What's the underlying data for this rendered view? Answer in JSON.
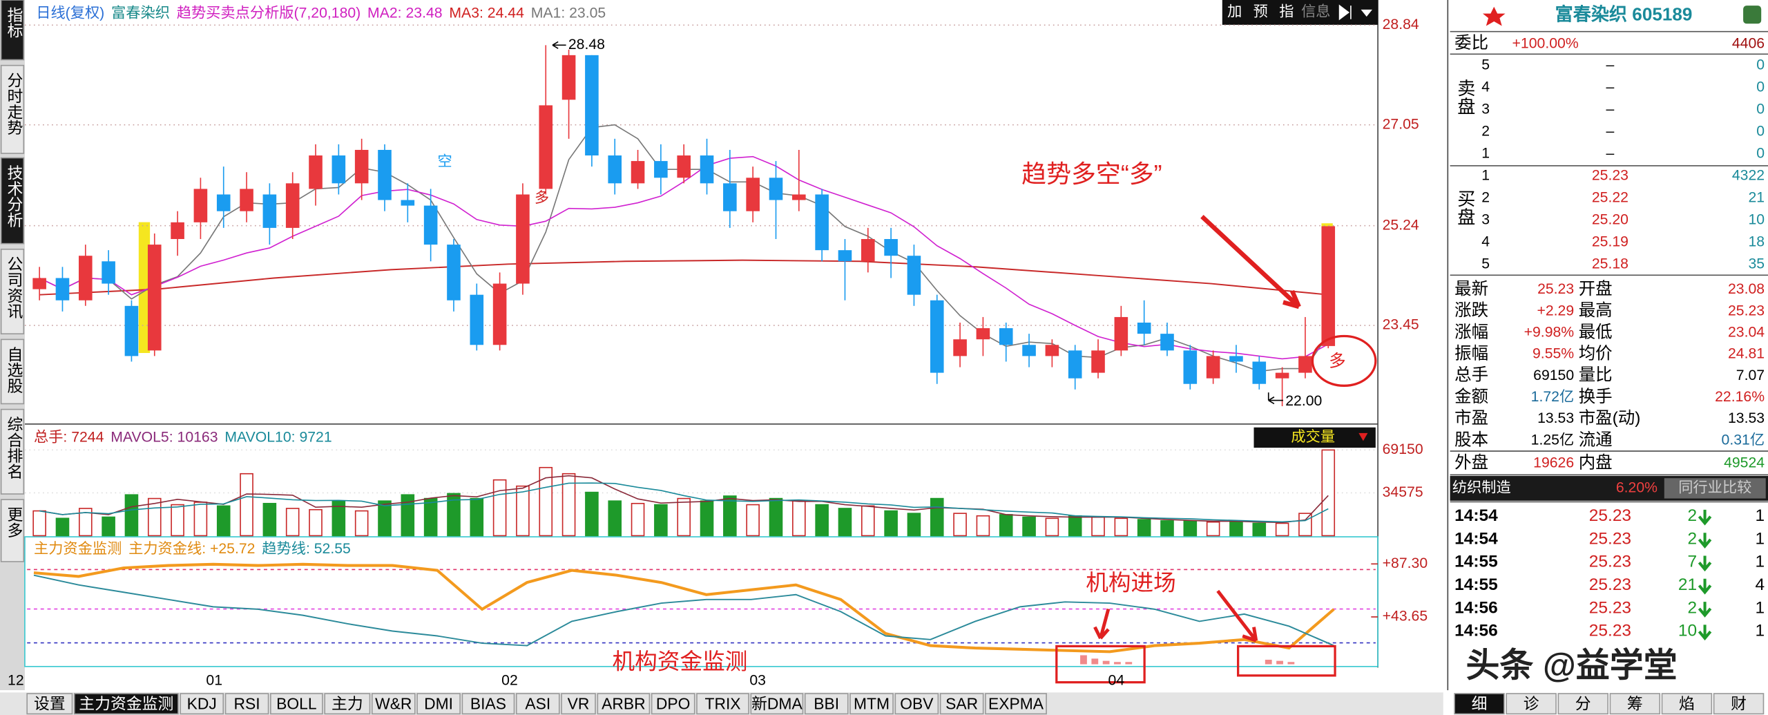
{
  "sidebar": [
    "指标",
    "分时走势",
    "技术分析",
    "公司资讯",
    "自选股",
    "综合排名",
    "更多"
  ],
  "toolbar": [
    "加",
    "预",
    "指",
    "信息"
  ],
  "header": {
    "period": "日线(复权)",
    "name": "富春染织",
    "indicator": "趋势买卖点分析版(7,20,180)",
    "ma2": "MA2: 23.48",
    "ma3": "MA3: 24.44",
    "ma1": "MA1: 23.05"
  },
  "price_chart": {
    "type": "candlestick",
    "ylim": [
      21.7,
      29.29
    ],
    "yticks": [
      28.84,
      27.05,
      25.24,
      23.45
    ],
    "candles": [
      [
        24.1,
        24.3,
        24.5,
        23.9
      ],
      [
        24.3,
        23.9,
        24.5,
        23.7
      ],
      [
        23.9,
        24.7,
        24.9,
        23.8
      ],
      [
        24.6,
        24.2,
        24.8,
        24.0
      ],
      [
        23.8,
        22.9,
        23.9,
        22.8
      ],
      [
        23.0,
        24.9,
        25.1,
        22.9
      ],
      [
        25.0,
        25.3,
        25.5,
        24.7
      ],
      [
        25.3,
        25.9,
        26.1,
        25.0
      ],
      [
        25.8,
        25.5,
        26.3,
        25.2
      ],
      [
        25.5,
        25.9,
        26.2,
        25.3
      ],
      [
        25.8,
        25.2,
        26.0,
        24.9
      ],
      [
        25.2,
        26.0,
        26.2,
        25.0
      ],
      [
        25.9,
        26.5,
        26.7,
        25.6
      ],
      [
        26.5,
        26.0,
        26.7,
        25.8
      ],
      [
        26.0,
        26.6,
        26.8,
        25.7
      ],
      [
        26.6,
        25.7,
        26.7,
        25.5
      ],
      [
        25.7,
        25.6,
        26.0,
        25.3
      ],
      [
        25.6,
        24.9,
        25.9,
        24.6
      ],
      [
        24.9,
        23.9,
        25.0,
        23.7
      ],
      [
        24.0,
        23.1,
        24.2,
        23.0
      ],
      [
        23.1,
        24.2,
        24.4,
        23.0
      ],
      [
        24.2,
        25.8,
        26.0,
        24.0
      ],
      [
        25.9,
        27.4,
        28.48,
        25.8
      ],
      [
        27.5,
        28.3,
        28.4,
        26.8
      ],
      [
        28.3,
        26.5,
        28.3,
        26.3
      ],
      [
        26.5,
        26.0,
        26.8,
        25.8
      ],
      [
        26.0,
        26.4,
        26.6,
        25.9
      ],
      [
        26.4,
        26.1,
        26.7,
        25.8
      ],
      [
        26.1,
        26.5,
        26.7,
        26.0
      ],
      [
        26.5,
        26.0,
        26.8,
        25.8
      ],
      [
        26.0,
        25.5,
        26.6,
        25.2
      ],
      [
        25.5,
        26.1,
        26.3,
        25.3
      ],
      [
        26.1,
        25.7,
        26.4,
        25.0
      ],
      [
        25.7,
        25.8,
        26.6,
        25.5
      ],
      [
        25.8,
        24.8,
        25.9,
        24.6
      ],
      [
        24.8,
        24.6,
        25.0,
        23.9
      ],
      [
        24.6,
        25.0,
        25.2,
        24.4
      ],
      [
        25.0,
        24.7,
        25.2,
        24.3
      ],
      [
        24.7,
        24.0,
        24.9,
        23.8
      ],
      [
        23.9,
        22.6,
        24.0,
        22.4
      ],
      [
        22.9,
        23.2,
        23.5,
        22.7
      ],
      [
        23.2,
        23.4,
        23.6,
        22.9
      ],
      [
        23.4,
        23.1,
        23.5,
        22.8
      ],
      [
        23.1,
        22.9,
        23.3,
        22.7
      ],
      [
        22.9,
        23.1,
        23.2,
        22.7
      ],
      [
        23.0,
        22.5,
        23.1,
        22.3
      ],
      [
        22.6,
        23.0,
        23.2,
        22.5
      ],
      [
        23.0,
        23.6,
        23.8,
        22.9
      ],
      [
        23.5,
        23.3,
        23.9,
        23.1
      ],
      [
        23.3,
        23.0,
        23.5,
        22.9
      ],
      [
        23.0,
        22.4,
        23.1,
        22.3
      ],
      [
        22.5,
        22.9,
        23.0,
        22.4
      ],
      [
        22.9,
        22.8,
        23.1,
        22.6
      ],
      [
        22.8,
        22.4,
        22.9,
        22.3
      ],
      [
        22.5,
        22.6,
        22.7,
        22.0
      ],
      [
        22.6,
        22.9,
        23.6,
        22.5
      ],
      [
        23.08,
        25.23,
        25.23,
        23.04
      ]
    ],
    "ma_long": [
      24.0,
      24.1,
      24.3,
      24.45,
      24.55,
      24.6,
      24.62,
      24.6,
      24.5,
      24.35,
      24.2,
      24.0
    ],
    "max_label": "28.48",
    "min_label": "22.00",
    "label_short": "空",
    "label_long": "多",
    "annotation": "趋势多空“多”",
    "circle_label": "多"
  },
  "volume_chart": {
    "type": "bar",
    "total": "总手: 7244",
    "mavol5": "MAVOL5: 10163",
    "mavol10": "MAVOL10: 9721",
    "button": "成交量",
    "ylim": [
      0,
      89170
    ],
    "yticks": [
      69150,
      34575
    ],
    "values": [
      20000,
      14000,
      22000,
      15000,
      33000,
      30000,
      25000,
      27000,
      24000,
      50000,
      26000,
      22000,
      21000,
      28000,
      20000,
      28000,
      33000,
      30000,
      34000,
      30000,
      45000,
      40000,
      55000,
      50000,
      35000,
      28000,
      26000,
      25000,
      30000,
      28000,
      32000,
      25000,
      30000,
      28000,
      25000,
      22000,
      24000,
      20000,
      18000,
      30000,
      18000,
      16000,
      17000,
      15000,
      14000,
      16000,
      15000,
      14000,
      13000,
      12000,
      12000,
      11000,
      12000,
      10000,
      10000,
      18000,
      69150
    ]
  },
  "indicator_chart": {
    "type": "line",
    "name": "主力资金监测",
    "main_label": "主力资金线: +25.72",
    "trend_label": "趋势线: 52.55",
    "ylim": [
      2.8,
      108.7
    ],
    "yticks": [
      {
        "value": 87.3,
        "label": "+87.30"
      },
      {
        "value": 43.65,
        "label": "+43.65"
      }
    ],
    "levels": [
      {
        "value": 82.7,
        "color": "#e0306a"
      },
      {
        "value": 50.2,
        "color": "#e040e0"
      },
      {
        "value": 22.3,
        "color": "#3030c0"
      }
    ],
    "series": [
      {
        "name": "主力资金线",
        "color": "#f39a1e",
        "values": [
          80,
          77,
          84,
          86,
          87,
          86,
          87,
          86,
          86,
          82,
          50,
          72,
          82,
          78,
          72,
          62,
          66,
          70,
          58,
          30,
          20,
          18,
          17,
          16,
          15,
          20,
          22,
          25,
          18,
          50
        ]
      },
      {
        "name": "趋势线",
        "color": "#2b8a9a",
        "values": [
          78,
          70,
          64,
          58,
          52,
          50,
          45,
          38,
          32,
          28,
          22,
          20,
          40,
          48,
          55,
          58,
          58,
          62,
          48,
          28,
          25,
          40,
          52,
          56,
          55,
          50,
          40,
          46,
          36,
          20
        ]
      }
    ],
    "annotation_entry": "机构进场",
    "annotation_monitor": "机构资金监测"
  },
  "dates": [
    "12",
    "01",
    "02",
    "03",
    "04"
  ],
  "tabs": [
    "设置",
    "主力资金监测",
    "KDJ",
    "RSI",
    "BOLL",
    "主力",
    "W&R",
    "DMI",
    "BIAS",
    "ASI",
    "VR",
    "ARBR",
    "DPO",
    "TRIX",
    "新DMA",
    "BBI",
    "MTM",
    "OBV",
    "SAR",
    "EXPMA"
  ],
  "quote": {
    "title": "富春染织 605189",
    "webi": [
      "委比",
      "+100.00%",
      "4406"
    ],
    "sell_label": "卖盘",
    "buy_label": "买盘",
    "sell": [
      [
        "5",
        "–",
        "0"
      ],
      [
        "4",
        "–",
        "0"
      ],
      [
        "3",
        "–",
        "0"
      ],
      [
        "2",
        "–",
        "0"
      ],
      [
        "1",
        "–",
        "0"
      ]
    ],
    "buy": [
      [
        "1",
        "25.23",
        "4322"
      ],
      [
        "2",
        "25.22",
        "21"
      ],
      [
        "3",
        "25.20",
        "10"
      ],
      [
        "4",
        "25.19",
        "18"
      ],
      [
        "5",
        "25.18",
        "35"
      ]
    ],
    "stats": [
      [
        "最新",
        "25.23",
        "开盘",
        "23.08"
      ],
      [
        "涨跌",
        "+2.29",
        "最高",
        "25.23"
      ],
      [
        "涨幅",
        "+9.98%",
        "最低",
        "23.04"
      ],
      [
        "振幅",
        "9.55%",
        "均价",
        "24.81"
      ],
      [
        "总手",
        "69150",
        "量比",
        "7.07"
      ],
      [
        "金额",
        "1.72亿",
        "换手",
        "22.16%"
      ],
      [
        "市盈",
        "13.53",
        "市盈(动)",
        "13.53"
      ],
      [
        "股本",
        "1.25亿",
        "流通",
        "0.31亿"
      ]
    ],
    "outer": [
      "外盘",
      "19626",
      "内盘",
      "49524"
    ],
    "sector": [
      "纺织制造",
      "6.20%",
      "同行业比较"
    ],
    "trades": [
      [
        "14:54",
        "25.23",
        "2",
        "1"
      ],
      [
        "14:54",
        "25.23",
        "2",
        "1"
      ],
      [
        "14:55",
        "25.23",
        "7",
        "1"
      ],
      [
        "14:55",
        "25.23",
        "21",
        "4"
      ],
      [
        "14:56",
        "25.23",
        "2",
        "1"
      ],
      [
        "14:56",
        "25.23",
        "10",
        "1"
      ]
    ],
    "tabs": [
      "细",
      "诊",
      "分",
      "筹",
      "焰",
      "财"
    ]
  },
  "watermark": "头条 @益学堂"
}
